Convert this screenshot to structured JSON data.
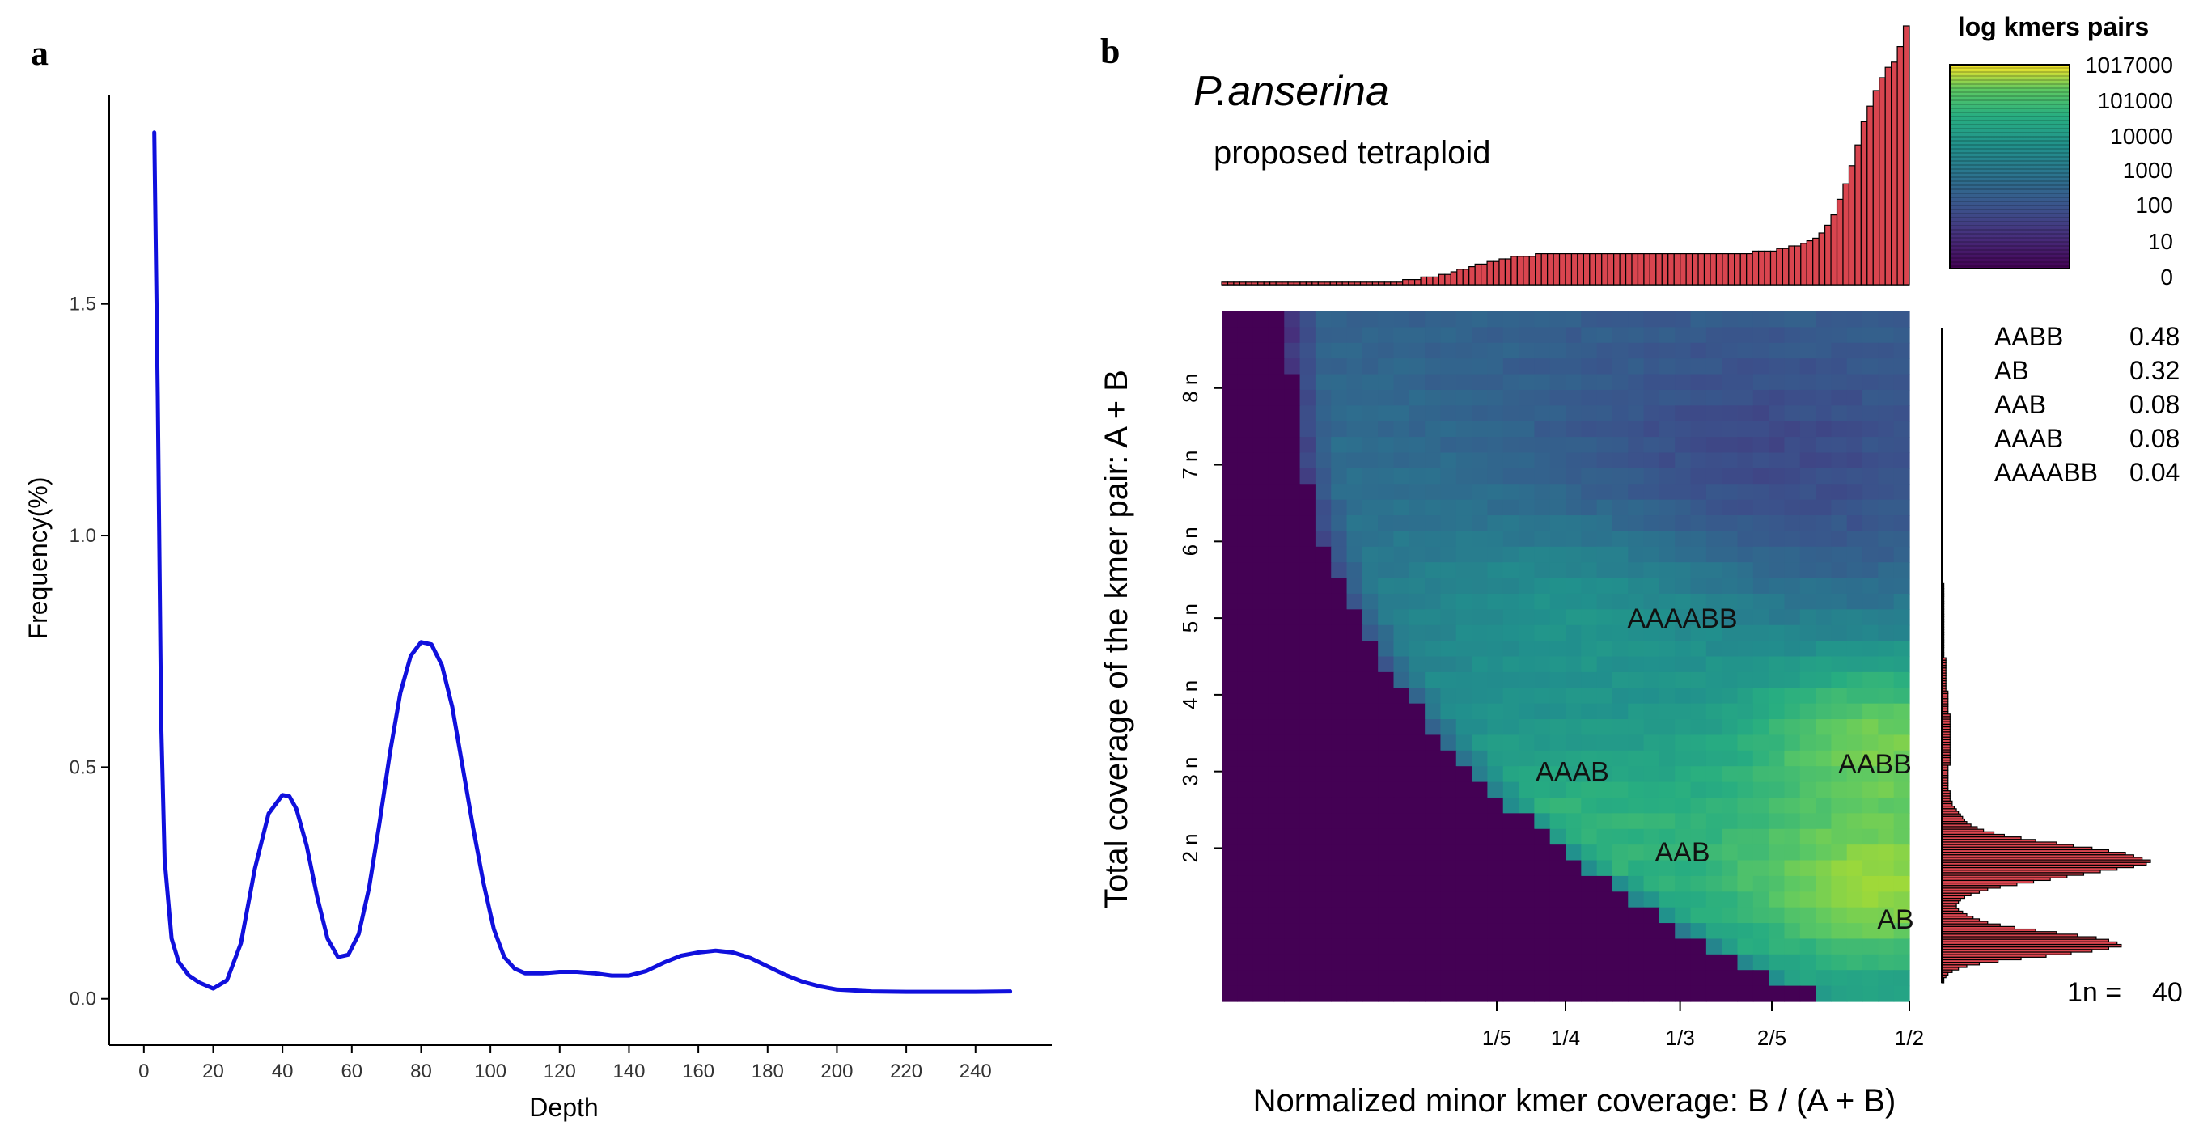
{
  "panel_a_label": "a",
  "panel_b_label": "b",
  "chart_data": [
    {
      "type": "line",
      "panel": "a",
      "title": "",
      "xlabel": "Depth",
      "ylabel": "Frequency(%)",
      "xlim": [
        -10,
        262
      ],
      "ylim": [
        -0.1,
        1.95
      ],
      "xticks": [
        0,
        20,
        40,
        60,
        80,
        100,
        120,
        140,
        160,
        180,
        200,
        220,
        240
      ],
      "yticks": [
        0.0,
        0.5,
        1.0,
        1.5
      ],
      "ytick_labels": [
        "0.0",
        "0.5",
        "1.0",
        "1.5"
      ],
      "line_color": "#1010dd",
      "x": [
        3,
        4,
        5,
        6,
        8,
        10,
        13,
        16,
        20,
        24,
        28,
        32,
        36,
        40,
        42,
        44,
        47,
        50,
        53,
        56,
        59,
        62,
        65,
        68,
        71,
        74,
        77,
        80,
        83,
        86,
        89,
        92,
        95,
        98,
        101,
        104,
        107,
        110,
        115,
        120,
        125,
        130,
        135,
        140,
        145,
        150,
        155,
        160,
        165,
        170,
        175,
        180,
        185,
        190,
        195,
        200,
        210,
        220,
        230,
        240,
        250
      ],
      "y": [
        1.87,
        1.3,
        0.6,
        0.3,
        0.13,
        0.08,
        0.05,
        0.035,
        0.022,
        0.04,
        0.12,
        0.28,
        0.4,
        0.44,
        0.437,
        0.41,
        0.33,
        0.22,
        0.13,
        0.09,
        0.095,
        0.14,
        0.24,
        0.38,
        0.53,
        0.66,
        0.74,
        0.77,
        0.765,
        0.72,
        0.63,
        0.5,
        0.37,
        0.25,
        0.15,
        0.09,
        0.065,
        0.055,
        0.055,
        0.058,
        0.058,
        0.055,
        0.05,
        0.05,
        0.06,
        0.078,
        0.093,
        0.1,
        0.104,
        0.1,
        0.088,
        0.07,
        0.052,
        0.037,
        0.027,
        0.02,
        0.016,
        0.015,
        0.015,
        0.015,
        0.016
      ]
    },
    {
      "type": "heatmap",
      "panel": "b",
      "title": "P.anserina",
      "subtitle": "proposed tetraploid",
      "xlabel": "Normalized minor kmer coverage: B / (A + B)",
      "ylabel": "Total coverage of the kmer pair: A + B",
      "xticks": [
        0.2,
        0.25,
        0.3333,
        0.4,
        0.5
      ],
      "xtick_labels": [
        "1/5",
        "1/4",
        "1/3",
        "2/5",
        "1/2"
      ],
      "xlim": [
        0.0,
        0.5
      ],
      "ylim": [
        0,
        360
      ],
      "yticks": [
        80,
        120,
        160,
        200,
        240,
        280,
        320
      ],
      "ytick_labels": [
        "2 n",
        "3 n",
        "4 n",
        "5 n",
        "6 n",
        "7 n",
        "8 n"
      ],
      "legend_title": "log kmers pairs",
      "legend_labels": [
        "1017000",
        "101000",
        "10000",
        "1000",
        "100",
        "10",
        "0"
      ],
      "annotations": [
        {
          "text": "AAAABB",
          "x": 0.335,
          "y": 200
        },
        {
          "text": "AAAB",
          "x": 0.255,
          "y": 120
        },
        {
          "text": "AAB",
          "x": 0.335,
          "y": 78
        },
        {
          "text": "AABB",
          "x": 0.475,
          "y": 124
        },
        {
          "text": "AB",
          "x": 0.49,
          "y": 43
        }
      ],
      "smudge_table": [
        {
          "label": "AABB",
          "value": "0.48"
        },
        {
          "label": "AB",
          "value": "0.32"
        },
        {
          "label": "AAB",
          "value": "0.08"
        },
        {
          "label": "AAAB",
          "value": "0.08"
        },
        {
          "label": "AAAABB",
          "value": "0.04"
        }
      ],
      "n_label": "1n =",
      "n_value": "40",
      "bar_color": "#d9454f",
      "top_histogram": [
        1,
        1,
        1,
        1,
        1,
        1,
        1,
        1,
        1,
        1,
        1,
        1,
        1,
        1,
        1,
        1,
        1,
        1,
        1,
        1,
        1,
        1,
        1,
        1,
        1,
        1,
        1,
        1,
        1,
        1,
        2,
        2,
        2,
        3,
        3,
        3,
        4,
        4,
        5,
        6,
        6,
        7,
        8,
        8,
        9,
        9,
        10,
        10,
        11,
        11,
        11,
        11,
        12,
        12,
        12,
        12,
        12,
        12,
        12,
        12,
        12,
        12,
        12,
        12,
        12,
        12,
        12,
        12,
        12,
        12,
        12,
        12,
        12,
        12,
        12,
        12,
        12,
        12,
        12,
        12,
        12,
        12,
        12,
        12,
        12,
        12,
        12,
        12,
        13,
        13,
        13,
        13,
        14,
        14,
        15,
        15,
        16,
        17,
        18,
        20,
        23,
        27,
        33,
        39,
        46,
        54,
        63,
        69,
        75,
        80,
        84,
        86,
        92,
        100
      ],
      "right_histogram": [
        0,
        0,
        0,
        0,
        0,
        0,
        0,
        0,
        0,
        0,
        0,
        0,
        0,
        0,
        0,
        0,
        0,
        0,
        0,
        0,
        0,
        0,
        0,
        0,
        0,
        0,
        0,
        0,
        0,
        0,
        0,
        0,
        0,
        0,
        0,
        0,
        0,
        0,
        0,
        0,
        0,
        0,
        0,
        0,
        0,
        0,
        0,
        0,
        0,
        0,
        0,
        0,
        0,
        0,
        0,
        0,
        0,
        0,
        0,
        0,
        0,
        0,
        0,
        0,
        0,
        0,
        0,
        0,
        0,
        0,
        0,
        0,
        0,
        0,
        0,
        0,
        0,
        0,
        0,
        0,
        0,
        0,
        0,
        0,
        0,
        0,
        0,
        0,
        0,
        0,
        0,
        0,
        0,
        0,
        0,
        0,
        0,
        0,
        0,
        0,
        1,
        1,
        1,
        1,
        1,
        1,
        1,
        1,
        1,
        1,
        1,
        1,
        1,
        1,
        1,
        1,
        1,
        1,
        1,
        1,
        1,
        1,
        1,
        1,
        1,
        1,
        1,
        1,
        1,
        2,
        2,
        2,
        2,
        2,
        2,
        2,
        2,
        2,
        2,
        2,
        2,
        2,
        3,
        3,
        3,
        3,
        3,
        3,
        3,
        3,
        3,
        4,
        4,
        4,
        4,
        4,
        4,
        4,
        4,
        4,
        4,
        4,
        4,
        4,
        4,
        4,
        4,
        4,
        4,
        4,
        4,
        3,
        3,
        3,
        3,
        3,
        3,
        3,
        3,
        3,
        3,
        4,
        4,
        4,
        4,
        5,
        5,
        6,
        7,
        8,
        9,
        10,
        11,
        12,
        14,
        17,
        20,
        25,
        30,
        38,
        45,
        55,
        63,
        72,
        80,
        88,
        92,
        96,
        100,
        98,
        92,
        84,
        76,
        68,
        60,
        52,
        44,
        36,
        28,
        22,
        18,
        14,
        11,
        9,
        8,
        7,
        7,
        8,
        10,
        12,
        15,
        18,
        22,
        28,
        35,
        45,
        55,
        65,
        74,
        80,
        84,
        86,
        80,
        72,
        62,
        50,
        38,
        27,
        18,
        12,
        8,
        5,
        3,
        2,
        1,
        1
      ]
    }
  ]
}
